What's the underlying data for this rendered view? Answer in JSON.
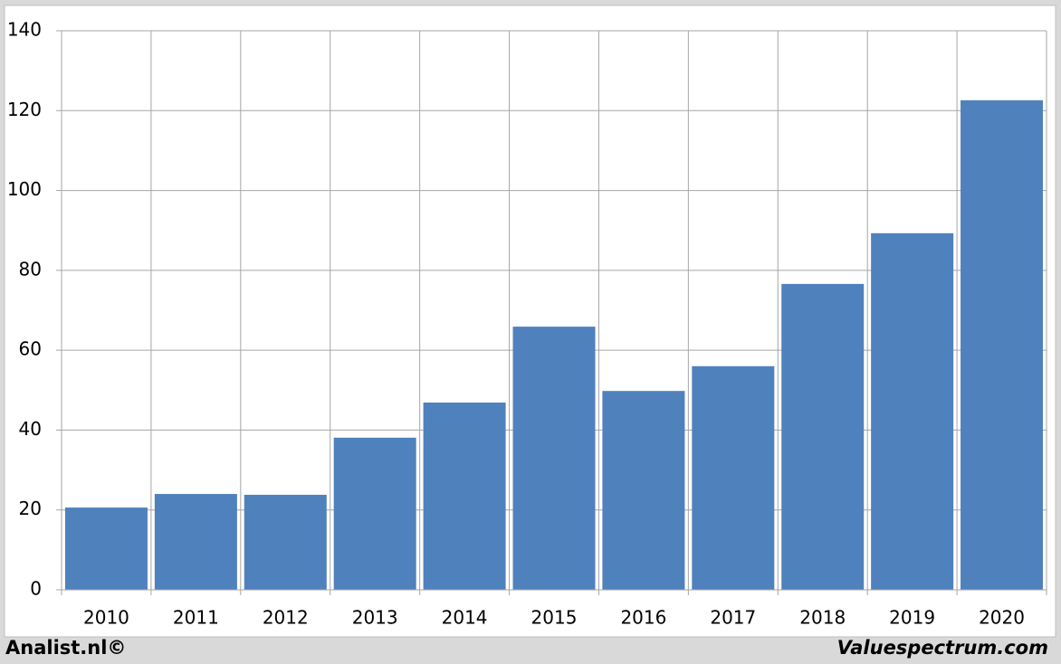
{
  "chart_data": {
    "type": "bar",
    "categories": [
      "2010",
      "2011",
      "2012",
      "2013",
      "2014",
      "2015",
      "2016",
      "2017",
      "2018",
      "2019",
      "2020"
    ],
    "values": [
      20.6,
      24.0,
      23.8,
      38.1,
      46.9,
      65.9,
      49.8,
      56.0,
      76.6,
      89.3,
      122.6
    ],
    "color": "#4f81bd",
    "ylim": [
      0,
      140
    ],
    "yticks": [
      0,
      20,
      40,
      60,
      80,
      100,
      120,
      140
    ],
    "grid": true,
    "footer_left": "Analist.nl©",
    "footer_right": "Valuespectrum.com"
  }
}
